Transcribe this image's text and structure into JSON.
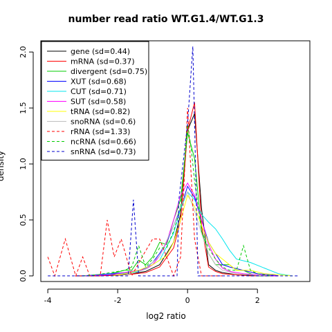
{
  "chart_data": {
    "type": "line",
    "title": "number read ratio WT.G1.4/WT.G1.3",
    "xlabel": "log2 ratio",
    "ylabel": "density",
    "xlim": [
      -4.2,
      3.5
    ],
    "ylim": [
      -0.05,
      2.1
    ],
    "xticks": [
      -4,
      -2,
      0,
      2
    ],
    "xtick_labels": [
      "-4",
      "-2",
      "0",
      "2"
    ],
    "yticks": [
      0.0,
      0.5,
      1.0,
      1.5,
      2.0
    ],
    "ytick_labels": [
      "0.0",
      "0.5",
      "1.0",
      "1.5",
      "2.0"
    ],
    "legend_position": "top-left",
    "series": [
      {
        "name": "gene (sd=0.44)",
        "color": "#000000",
        "dash": "solid",
        "x": [
          -3.2,
          -2.6,
          -2.0,
          -1.6,
          -1.2,
          -0.8,
          -0.4,
          -0.2,
          0.0,
          0.2,
          0.4,
          0.6,
          0.8,
          1.0,
          1.4,
          1.8,
          2.2,
          2.6
        ],
        "y": [
          0,
          0,
          0.01,
          0.02,
          0.04,
          0.1,
          0.3,
          0.55,
          1.3,
          1.45,
          0.6,
          0.1,
          0.05,
          0.03,
          0.01,
          0.005,
          0,
          0
        ]
      },
      {
        "name": "mRNA (sd=0.37)",
        "color": "#ff0000",
        "dash": "solid",
        "x": [
          -3.2,
          -2.6,
          -2.0,
          -1.6,
          -1.2,
          -0.8,
          -0.4,
          -0.2,
          0.0,
          0.2,
          0.4,
          0.6,
          0.8,
          1.0,
          1.4,
          1.8,
          2.2,
          2.6
        ],
        "y": [
          0,
          0,
          0.005,
          0.015,
          0.03,
          0.08,
          0.25,
          0.5,
          1.3,
          1.55,
          0.45,
          0.08,
          0.04,
          0.02,
          0.01,
          0,
          0,
          0
        ]
      },
      {
        "name": "divergent (sd=0.75)",
        "color": "#00cc00",
        "dash": "solid",
        "x": [
          -3.0,
          -2.6,
          -2.2,
          -1.8,
          -1.6,
          -1.4,
          -1.2,
          -1.0,
          -0.8,
          -0.6,
          -0.4,
          -0.2,
          0.0,
          0.2,
          0.4,
          0.6,
          0.8,
          1.0,
          1.2,
          1.4,
          1.6,
          1.8,
          2.0,
          2.4
        ],
        "y": [
          0,
          0.01,
          0.02,
          0.05,
          0.05,
          0.14,
          0.1,
          0.17,
          0.3,
          0.28,
          0.5,
          0.68,
          1.28,
          1.05,
          0.4,
          0.2,
          0.1,
          0.1,
          0.1,
          0.05,
          0.05,
          0.02,
          0,
          0
        ]
      },
      {
        "name": "XUT (sd=0.68)",
        "color": "#0000ff",
        "dash": "solid",
        "x": [
          -3.0,
          -2.6,
          -2.2,
          -1.8,
          -1.4,
          -1.2,
          -1.0,
          -0.8,
          -0.6,
          -0.4,
          -0.2,
          0.0,
          0.2,
          0.4,
          0.6,
          0.8,
          1.0,
          1.2,
          1.6,
          2.0,
          2.4,
          2.6
        ],
        "y": [
          0,
          0.01,
          0.02,
          0.03,
          0.05,
          0.07,
          0.12,
          0.2,
          0.3,
          0.45,
          0.6,
          0.8,
          0.7,
          0.5,
          0.3,
          0.2,
          0.1,
          0.08,
          0.05,
          0.02,
          0.01,
          0
        ]
      },
      {
        "name": "CUT (sd=0.71)",
        "color": "#00e5ee",
        "dash": "solid",
        "x": [
          -3.0,
          -2.4,
          -2.0,
          -1.6,
          -1.2,
          -0.8,
          -0.4,
          -0.2,
          0.0,
          0.2,
          0.4,
          0.6,
          0.8,
          1.0,
          1.2,
          1.4,
          1.8,
          2.2,
          2.6,
          3.0
        ],
        "y": [
          0,
          0.01,
          0.02,
          0.03,
          0.06,
          0.14,
          0.38,
          0.6,
          0.75,
          0.68,
          0.55,
          0.48,
          0.42,
          0.33,
          0.23,
          0.15,
          0.12,
          0.07,
          0.02,
          0
        ]
      },
      {
        "name": "SUT (sd=0.58)",
        "color": "#ff00ff",
        "dash": "solid",
        "x": [
          -3.0,
          -2.6,
          -2.2,
          -1.8,
          -1.4,
          -1.2,
          -1.0,
          -0.8,
          -0.6,
          -0.4,
          -0.2,
          0.0,
          0.2,
          0.4,
          0.6,
          0.8,
          1.0,
          1.2,
          1.6,
          2.0,
          2.4,
          2.6
        ],
        "y": [
          0,
          0.005,
          0.01,
          0.03,
          0.05,
          0.06,
          0.1,
          0.18,
          0.3,
          0.5,
          0.72,
          0.83,
          0.72,
          0.5,
          0.28,
          0.15,
          0.07,
          0.04,
          0.02,
          0.01,
          0,
          0
        ]
      },
      {
        "name": "tRNA (sd=0.82)",
        "color": "#ffff00",
        "dash": "solid",
        "x": [
          -2.2,
          -1.8,
          -1.4,
          -1.0,
          -0.6,
          -0.4,
          -0.2,
          0.0,
          0.2,
          0.4,
          0.6,
          0.8,
          1.0,
          1.2,
          1.4,
          1.8,
          2.2,
          2.6,
          3.0
        ],
        "y": [
          0,
          0.02,
          0.05,
          0.1,
          0.18,
          0.3,
          0.5,
          0.72,
          0.62,
          0.45,
          0.3,
          0.2,
          0.15,
          0.1,
          0.05,
          0.05,
          0.02,
          0.01,
          0
        ]
      },
      {
        "name": "snoRNA (sd=0.6)",
        "color": "#bebebe",
        "dash": "solid",
        "x": [
          -2.0,
          -1.6,
          -1.2,
          -0.8,
          -0.4,
          -0.2,
          0.0,
          0.2,
          0.4,
          0.6,
          0.8,
          1.0,
          1.4,
          1.8,
          2.2
        ],
        "y": [
          0,
          0.02,
          0.06,
          0.18,
          0.45,
          0.62,
          0.75,
          0.58,
          0.38,
          0.2,
          0.1,
          0.05,
          0.02,
          0.01,
          0
        ]
      },
      {
        "name": "rRNA (sd=1.33)",
        "color": "#ff0000",
        "dash": "dashed",
        "x": [
          -4.0,
          -3.8,
          -3.5,
          -3.2,
          -3.0,
          -2.8,
          -2.5,
          -2.3,
          -2.1,
          -1.9,
          -1.6,
          -1.3,
          -1.0,
          -0.8,
          -0.6,
          -0.4,
          -0.2,
          0.0,
          0.2,
          0.4,
          0.6,
          0.8,
          1.0
        ],
        "y": [
          0.17,
          0,
          0.33,
          0,
          0.17,
          0,
          0,
          0.5,
          0.17,
          0.33,
          0,
          0.17,
          0.33,
          0.33,
          0.17,
          0,
          0.17,
          1.5,
          0.33,
          0,
          0,
          0,
          0
        ]
      },
      {
        "name": "ncRNA (sd=0.66)",
        "color": "#00cc00",
        "dash": "dashed",
        "x": [
          -3.0,
          -2.6,
          -2.2,
          -1.8,
          -1.6,
          -1.4,
          -1.2,
          -1.0,
          -0.8,
          -0.6,
          -0.4,
          -0.2,
          0.0,
          0.1,
          0.2,
          0.4,
          0.6,
          0.8,
          1.0,
          1.2,
          1.4,
          1.6,
          1.8,
          2.0,
          2.4
        ],
        "y": [
          0,
          0.01,
          0.03,
          0.05,
          0.08,
          0.27,
          0.08,
          0.15,
          0.25,
          0.25,
          0.4,
          0.6,
          1.35,
          1.15,
          0.85,
          0.4,
          0.25,
          0.15,
          0.08,
          0.05,
          0.05,
          0.27,
          0.05,
          0.02,
          0
        ]
      },
      {
        "name": "snRNA (sd=0.73)",
        "color": "#0000cd",
        "dash": "dashed",
        "x": [
          -4.0,
          -2.0,
          -1.7,
          -1.55,
          -1.4,
          -0.3,
          -0.25,
          0.0,
          0.15,
          0.25,
          0.3,
          3.2
        ],
        "y": [
          0,
          0,
          0,
          0.68,
          0,
          0,
          0.68,
          1.36,
          2.05,
          0.68,
          0,
          0
        ]
      }
    ]
  }
}
